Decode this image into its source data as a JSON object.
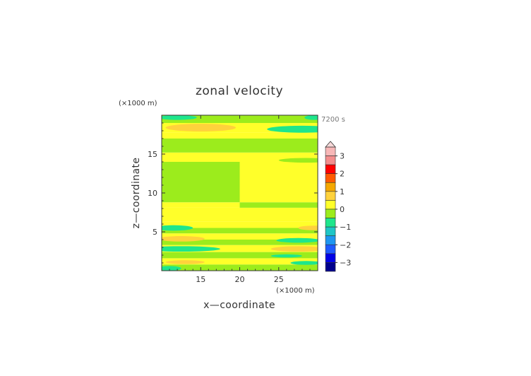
{
  "chart_data": {
    "type": "heatmap",
    "title": "zonal velocity",
    "xlabel": "x—coordinate",
    "ylabel": "z—coordinate",
    "x_unit": "(×1000 m)",
    "y_unit": "(×1000 m)",
    "time_label": "7200 s",
    "xlim": [
      10,
      30
    ],
    "ylim": [
      0,
      20
    ],
    "x_ticks": [
      15,
      20,
      25
    ],
    "y_ticks": [
      5,
      10,
      15
    ],
    "grid": false,
    "colorbar": {
      "placement": "right",
      "extend_max": true,
      "vmin": -3.5,
      "vmax": 3.5,
      "ticks": [
        3,
        2,
        1,
        0,
        -1,
        -2,
        -3
      ],
      "levels": [
        {
          "lo": 3.0,
          "hi": 3.5,
          "color": "#f7b7b7"
        },
        {
          "lo": 2.5,
          "hi": 3.0,
          "color": "#f38d8d"
        },
        {
          "lo": 2.0,
          "hi": 2.5,
          "color": "#ff0000"
        },
        {
          "lo": 1.5,
          "hi": 2.0,
          "color": "#ff5a00"
        },
        {
          "lo": 1.0,
          "hi": 1.5,
          "color": "#f5a800"
        },
        {
          "lo": 0.5,
          "hi": 1.0,
          "color": "#ffd23c"
        },
        {
          "lo": 0.0,
          "hi": 0.5,
          "color": "#ffff2a"
        },
        {
          "lo": -0.5,
          "hi": 0.0,
          "color": "#9cec1c"
        },
        {
          "lo": -1.0,
          "hi": -0.5,
          "color": "#1ee68c"
        },
        {
          "lo": -1.5,
          "hi": -1.0,
          "color": "#1ec6c6"
        },
        {
          "lo": -2.0,
          "hi": -1.5,
          "color": "#1e96f0"
        },
        {
          "lo": -2.5,
          "hi": -2.0,
          "color": "#1e5aff"
        },
        {
          "lo": -3.0,
          "hi": -2.5,
          "color": "#0000e6"
        },
        {
          "lo": -3.5,
          "hi": -3.0,
          "color": "#00008c"
        }
      ]
    },
    "bands": [
      {
        "z0": 0.0,
        "z1": 0.8,
        "left": -0.3,
        "right": -0.2
      },
      {
        "z0": 0.8,
        "z1": 1.6,
        "left": 0.1,
        "right": 0.2
      },
      {
        "z0": 1.6,
        "z1": 2.4,
        "left": -0.3,
        "right": -0.3
      },
      {
        "z0": 2.4,
        "z1": 3.3,
        "left": 0.2,
        "right": 0.2
      },
      {
        "z0": 3.3,
        "z1": 4.0,
        "left": -0.2,
        "right": -0.3
      },
      {
        "z0": 4.0,
        "z1": 4.8,
        "left": 0.3,
        "right": 0.3
      },
      {
        "z0": 4.8,
        "z1": 5.5,
        "left": -0.3,
        "right": -0.2
      },
      {
        "z0": 5.5,
        "z1": 6.3,
        "left": 0.2,
        "right": 0.2
      },
      {
        "z0": 6.3,
        "z1": 8.1,
        "left": 0.1,
        "right": 0.1
      },
      {
        "z0": 8.1,
        "z1": 8.8,
        "left": 0.2,
        "right": -0.2
      },
      {
        "z0": 8.8,
        "z1": 14.0,
        "left": -0.3,
        "right": 0.3
      },
      {
        "z0": 14.0,
        "z1": 15.2,
        "left": 0.2,
        "right": 0.2
      },
      {
        "z0": 15.2,
        "z1": 17.0,
        "left": -0.3,
        "right": -0.3
      },
      {
        "z0": 17.0,
        "z1": 17.8,
        "left": 0.2,
        "right": 0.2
      },
      {
        "z0": 17.8,
        "z1": 19.0,
        "left": 0.3,
        "right": 0.2
      },
      {
        "z0": 19.0,
        "z1": 20.0,
        "left": -0.3,
        "right": -0.2
      }
    ],
    "features": [
      {
        "x": 15,
        "z": 18.4,
        "rx": 4.5,
        "rz": 0.5,
        "value": 0.8
      },
      {
        "x": 28,
        "z": 18.2,
        "rx": 4.5,
        "rz": 0.45,
        "value": -0.8
      },
      {
        "x": 12,
        "z": 19.7,
        "rx": 2.5,
        "rz": 0.3,
        "value": -0.8
      },
      {
        "x": 29.5,
        "z": 19.7,
        "rx": 1.2,
        "rz": 0.3,
        "value": -0.8
      },
      {
        "x": 28.5,
        "z": 14.2,
        "rx": 3.5,
        "rz": 0.3,
        "value": -0.3
      },
      {
        "x": 11.5,
        "z": 5.5,
        "rx": 2.5,
        "rz": 0.35,
        "value": -0.8
      },
      {
        "x": 29.5,
        "z": 5.5,
        "rx": 2.0,
        "rz": 0.3,
        "value": 0.8
      },
      {
        "x": 27.5,
        "z": 3.9,
        "rx": 2.8,
        "rz": 0.3,
        "value": -0.8
      },
      {
        "x": 12.5,
        "z": 4.1,
        "rx": 3.0,
        "rz": 0.35,
        "value": 0.8
      },
      {
        "x": 12.5,
        "z": 2.8,
        "rx": 5.0,
        "rz": 0.35,
        "value": -0.8
      },
      {
        "x": 27.5,
        "z": 2.8,
        "rx": 3.5,
        "rz": 0.35,
        "value": 0.8
      },
      {
        "x": 26.0,
        "z": 1.9,
        "rx": 2.0,
        "rz": 0.2,
        "value": -0.8
      },
      {
        "x": 13.0,
        "z": 1.1,
        "rx": 2.5,
        "rz": 0.25,
        "value": 0.8
      },
      {
        "x": 28.5,
        "z": 1.0,
        "rx": 2.0,
        "rz": 0.25,
        "value": -0.8
      },
      {
        "x": 11.0,
        "z": 0.3,
        "rx": 1.5,
        "rz": 0.3,
        "value": -0.8
      }
    ]
  }
}
